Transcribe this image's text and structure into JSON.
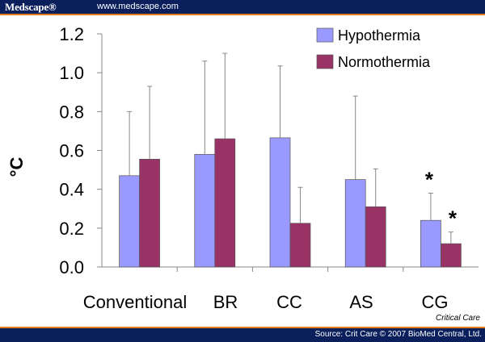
{
  "header": {
    "brand": "Medscape®",
    "site": "www.medscape.com"
  },
  "footer": {
    "source": "Source: Crit Care © 2007 BioMed Central, Ltd.",
    "journal": "Critical Care"
  },
  "colors": {
    "hypothermia": "#9999ff",
    "normothermia": "#993366",
    "header_bg": "#0a1f5c",
    "accent": "#e07a1a"
  },
  "chart_data": {
    "type": "bar",
    "categories": [
      "Conventional",
      "BR",
      "CC",
      "AS",
      "CG"
    ],
    "series": [
      {
        "name": "Hypothermia",
        "values": [
          0.47,
          0.58,
          0.665,
          0.45,
          0.24
        ],
        "errors": [
          0.33,
          0.48,
          0.37,
          0.43,
          0.14
        ]
      },
      {
        "name": "Normothermia",
        "values": [
          0.555,
          0.66,
          0.225,
          0.31,
          0.12
        ],
        "errors": [
          0.375,
          0.44,
          0.185,
          0.195,
          0.06
        ]
      }
    ],
    "ylabel": "°C",
    "ylim": [
      0,
      1.2
    ],
    "yticks": [
      "0.0",
      "0.2",
      "0.4",
      "0.6",
      "0.8",
      "1.0",
      "1.2"
    ],
    "annotations": [
      {
        "text": "*",
        "category": "CG",
        "series": "Hypothermia"
      },
      {
        "text": "*",
        "category": "CG",
        "series": "Normothermia"
      }
    ],
    "legend": "top-right",
    "grid": false
  }
}
